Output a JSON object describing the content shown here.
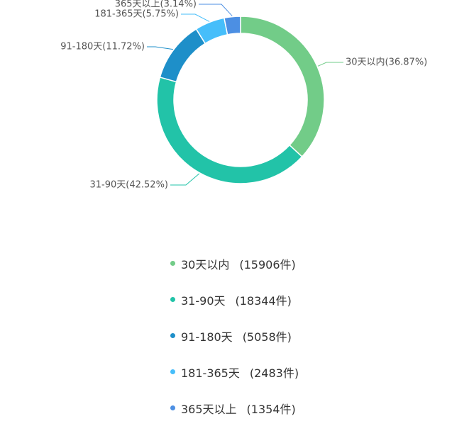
{
  "chart_data": {
    "type": "pie",
    "variant": "donut",
    "categories": [
      "30天以内",
      "31-90天",
      "91-180天",
      "181-365天",
      "365天以上"
    ],
    "values": [
      15906,
      18344,
      5058,
      2483,
      1354
    ],
    "percent_labels": [
      "36.87%",
      "42.52%",
      "11.72%",
      "5.75%",
      "3.14%"
    ],
    "slice_labels": [
      "30天以内(36.87%)",
      "31-90天(42.52%)",
      "91-180天(11.72%)",
      "181-365天(5.75%)",
      "365天以上(3.14%)"
    ],
    "colors": [
      "#72cc88",
      "#22c3a8",
      "#1e8fc9",
      "#46befa",
      "#4c8fe3"
    ],
    "legend_placement": "bottom",
    "legend": [
      {
        "name": "30天以内",
        "count": "(15906件)"
      },
      {
        "name": "31-90天",
        "count": "(18344件)"
      },
      {
        "name": "91-180天",
        "count": "(5058件)"
      },
      {
        "name": "181-365天",
        "count": "(2483件)"
      },
      {
        "name": "365天以上",
        "count": "(1354件)"
      }
    ]
  }
}
